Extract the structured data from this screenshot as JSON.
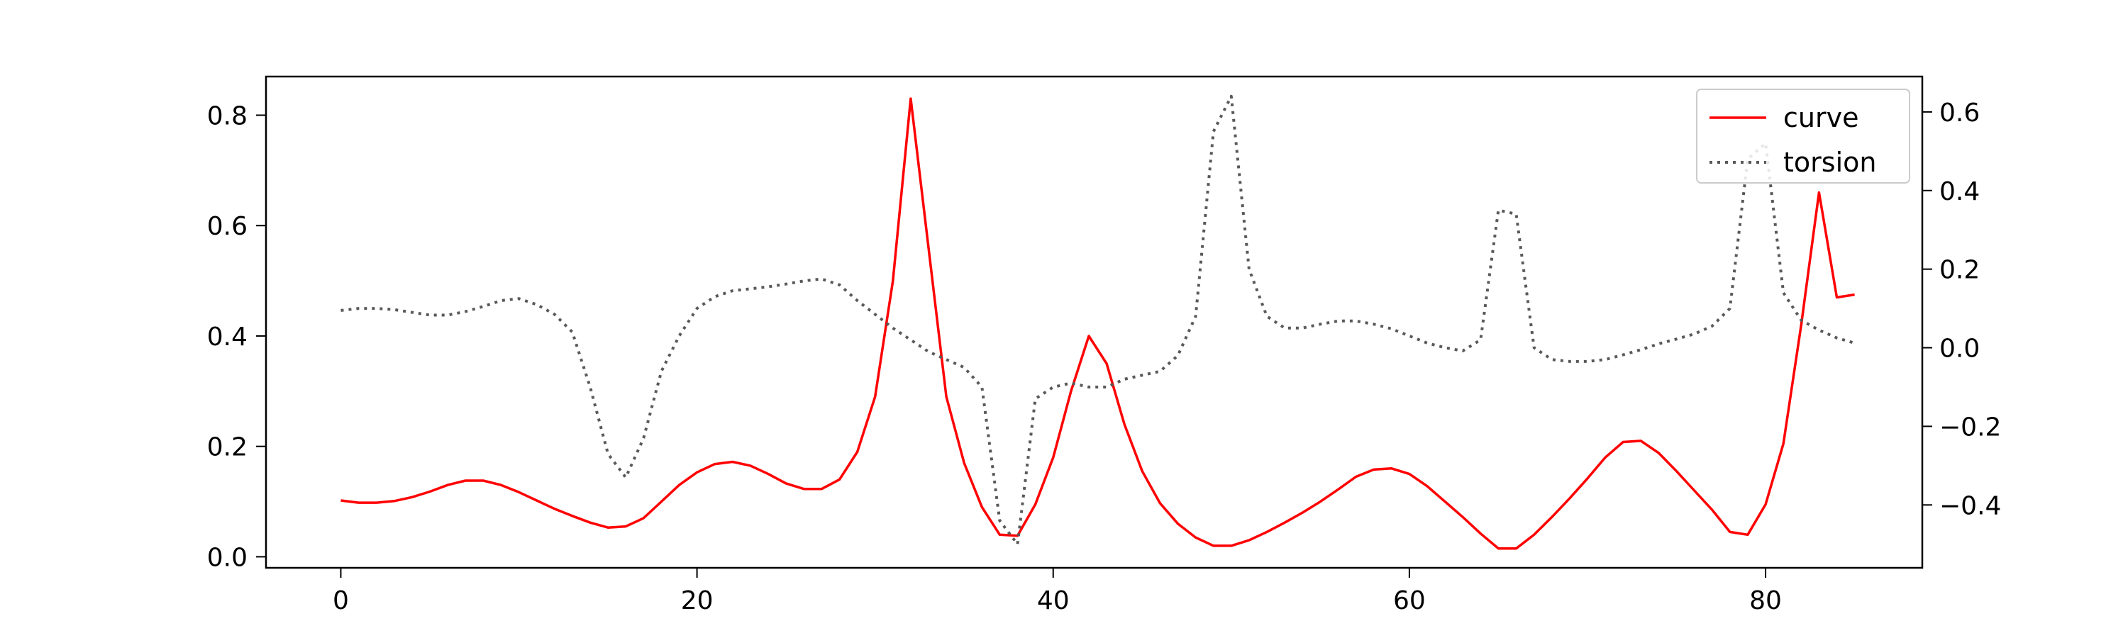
{
  "chart_data": {
    "type": "line",
    "title": "",
    "xlabel": "",
    "ylabel": "",
    "y2label": "",
    "xlim": [
      -4.2,
      88.8
    ],
    "ylim": [
      -0.02,
      0.87
    ],
    "y2lim": [
      -0.56,
      0.69
    ],
    "xticks": [
      0,
      20,
      40,
      60,
      80
    ],
    "yticks": [
      0.0,
      0.2,
      0.4,
      0.6,
      0.8
    ],
    "y2ticks": [
      -0.4,
      -0.2,
      0.0,
      0.2,
      0.4,
      0.6
    ],
    "legend_position": "top-right",
    "grid": false,
    "series": [
      {
        "name": "curve",
        "axis": "left",
        "color": "#ff0000",
        "style": "solid",
        "x": [
          0,
          1,
          2,
          3,
          4,
          5,
          6,
          7,
          8,
          9,
          10,
          11,
          12,
          13,
          14,
          15,
          16,
          17,
          18,
          19,
          20,
          21,
          22,
          23,
          24,
          25,
          26,
          27,
          28,
          29,
          30,
          31,
          32,
          33,
          34,
          35,
          36,
          37,
          38,
          39,
          40,
          41,
          42,
          43,
          44,
          45,
          46,
          47,
          48,
          49,
          50,
          51,
          52,
          53,
          54,
          55,
          56,
          57,
          58,
          59,
          60,
          61,
          62,
          63,
          64,
          65,
          66,
          67,
          68,
          69,
          70,
          71,
          72,
          73,
          74,
          75,
          76,
          77,
          78,
          79,
          80,
          81,
          82,
          83,
          84,
          85
        ],
        "y": [
          0.102,
          0.098,
          0.098,
          0.101,
          0.108,
          0.118,
          0.13,
          0.138,
          0.138,
          0.13,
          0.117,
          0.102,
          0.087,
          0.074,
          0.062,
          0.053,
          0.055,
          0.07,
          0.1,
          0.13,
          0.153,
          0.168,
          0.172,
          0.165,
          0.15,
          0.133,
          0.123,
          0.123,
          0.14,
          0.19,
          0.29,
          0.5,
          0.83,
          0.56,
          0.29,
          0.17,
          0.09,
          0.04,
          0.038,
          0.095,
          0.18,
          0.3,
          0.4,
          0.35,
          0.24,
          0.155,
          0.097,
          0.06,
          0.035,
          0.02,
          0.02,
          0.03,
          0.045,
          0.062,
          0.08,
          0.1,
          0.122,
          0.145,
          0.158,
          0.16,
          0.15,
          0.128,
          0.1,
          0.072,
          0.042,
          0.015,
          0.015,
          0.04,
          0.072,
          0.106,
          0.142,
          0.18,
          0.208,
          0.21,
          0.188,
          0.155,
          0.12,
          0.085,
          0.045,
          0.04,
          0.095,
          0.205,
          0.42,
          0.66,
          0.47,
          0.475
        ]
      },
      {
        "name": "torsion",
        "axis": "right",
        "color": "#595959",
        "style": "dotted",
        "x": [
          0,
          1,
          2,
          3,
          4,
          5,
          6,
          7,
          8,
          9,
          10,
          11,
          12,
          13,
          14,
          15,
          16,
          17,
          18,
          19,
          20,
          21,
          22,
          23,
          24,
          25,
          26,
          27,
          28,
          29,
          30,
          31,
          32,
          33,
          34,
          35,
          36,
          37,
          38,
          39,
          40,
          41,
          42,
          43,
          44,
          45,
          46,
          47,
          48,
          49,
          50,
          51,
          52,
          53,
          54,
          55,
          56,
          57,
          58,
          59,
          60,
          61,
          62,
          63,
          64,
          65,
          66,
          67,
          68,
          69,
          70,
          71,
          72,
          73,
          74,
          75,
          76,
          77,
          78,
          79,
          80,
          81,
          82,
          83,
          84,
          85
        ],
        "y": [
          0.095,
          0.1,
          0.1,
          0.097,
          0.09,
          0.083,
          0.083,
          0.092,
          0.105,
          0.12,
          0.125,
          0.11,
          0.085,
          0.04,
          -0.1,
          -0.27,
          -0.33,
          -0.23,
          -0.06,
          0.03,
          0.1,
          0.13,
          0.145,
          0.15,
          0.155,
          0.162,
          0.17,
          0.175,
          0.16,
          0.12,
          0.085,
          0.05,
          0.02,
          -0.01,
          -0.03,
          -0.05,
          -0.1,
          -0.44,
          -0.5,
          -0.13,
          -0.1,
          -0.09,
          -0.1,
          -0.1,
          -0.08,
          -0.07,
          -0.06,
          -0.02,
          0.08,
          0.55,
          0.64,
          0.2,
          0.08,
          0.05,
          0.05,
          0.06,
          0.068,
          0.068,
          0.06,
          0.048,
          0.03,
          0.012,
          0.0,
          -0.008,
          0.02,
          0.35,
          0.34,
          0.0,
          -0.03,
          -0.035,
          -0.035,
          -0.03,
          -0.018,
          -0.005,
          0.01,
          0.022,
          0.035,
          0.055,
          0.1,
          0.48,
          0.52,
          0.14,
          0.07,
          0.045,
          0.025,
          0.012
        ]
      }
    ]
  }
}
